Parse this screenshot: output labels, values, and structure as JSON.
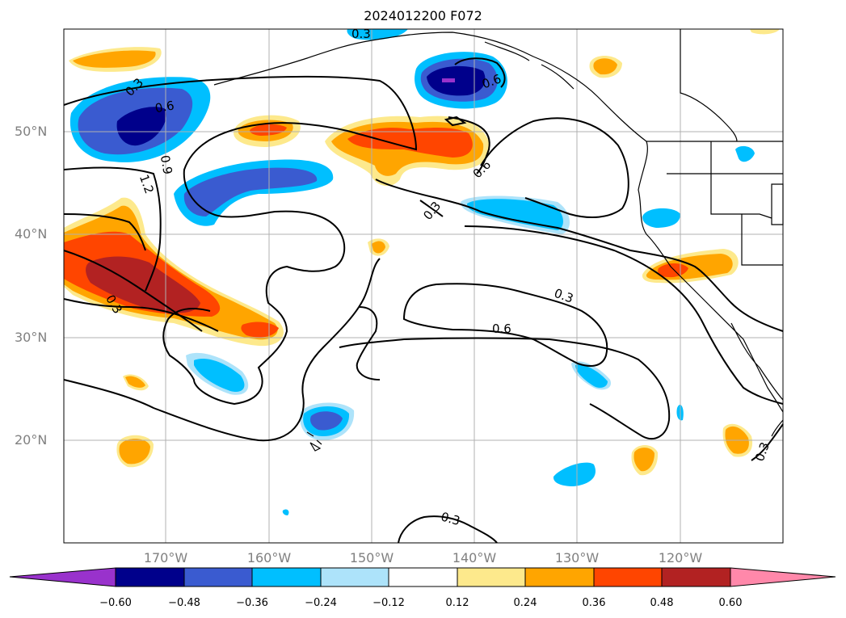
{
  "title": "2024012200 F072",
  "lat_labels": [
    "50°N",
    "40°N",
    "30°N",
    "20°N"
  ],
  "lon_labels": [
    "170°W",
    "160°W",
    "150°W",
    "140°W",
    "130°W",
    "120°W"
  ],
  "contour_labels": [
    "0.3",
    "0.6",
    "0.9",
    "1.2"
  ],
  "colorbar": {
    "ticks": [
      "−0.60",
      "−0.48",
      "−0.36",
      "−0.24",
      "−0.12",
      "0.12",
      "0.24",
      "0.36",
      "0.48",
      "0.60"
    ],
    "colors": [
      "#9932cc",
      "#00008b",
      "#3a5bd0",
      "#00bfff",
      "#ade3fa",
      "#ffffff",
      "#fde98c",
      "#ffa500",
      "#ff4500",
      "#b22222",
      "#ff88aa"
    ]
  },
  "colors": {
    "neg_light": "#ade3fa",
    "neg_mid": "#00bfff",
    "neg_dark": "#3a5bd0",
    "neg_deep": "#00008b",
    "neg_min": "#9932cc",
    "pos_light": "#fde98c",
    "pos_mid": "#ffa500",
    "pos_dark": "#ff4500",
    "pos_deep": "#b22222"
  }
}
